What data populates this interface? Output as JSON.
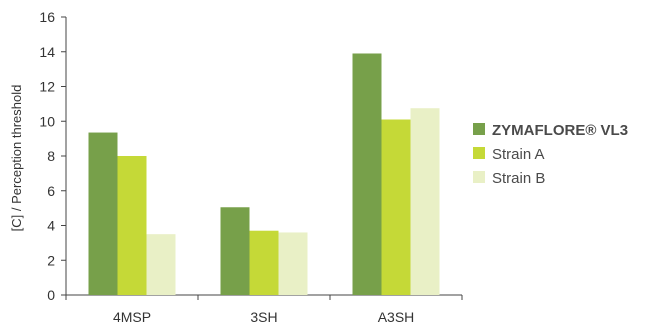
{
  "chart_data": {
    "type": "bar",
    "title": "",
    "xlabel": "",
    "ylabel": "[C] / Perception threshold",
    "ylim": [
      0,
      16
    ],
    "yticks": [
      0,
      2,
      4,
      6,
      8,
      10,
      12,
      14,
      16
    ],
    "grid": false,
    "legend_position": "right",
    "categories": [
      "4MSP",
      "3SH",
      "A3SH"
    ],
    "series": [
      {
        "name": "ZYMAFLORE® VL3",
        "values": [
          9.35,
          5.05,
          13.9
        ],
        "color": "#77a04a",
        "bold": true
      },
      {
        "name": "Strain A",
        "values": [
          8.0,
          3.7,
          10.1
        ],
        "color": "#c5d937",
        "bold": false
      },
      {
        "name": "Strain B",
        "values": [
          3.5,
          3.6,
          10.75
        ],
        "color": "#e9f0c6",
        "bold": false
      }
    ]
  }
}
